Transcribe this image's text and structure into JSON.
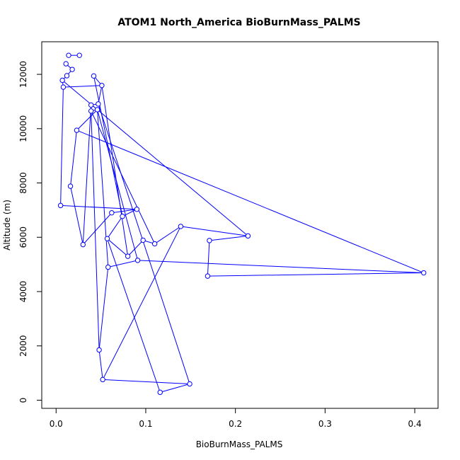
{
  "chart_data": {
    "type": "line",
    "title": "ATOM1 North_America BioBurnMass_PALMS",
    "xlabel": "BioBurnMass_PALMS",
    "ylabel": "Altitude (m)",
    "xlim": [
      -0.016,
      0.426
    ],
    "ylim": [
      -300,
      13200
    ],
    "x_ticks": [
      0.0,
      0.1,
      0.2,
      0.3,
      0.4
    ],
    "x_tick_labels": [
      "0.0",
      "0.1",
      "0.2",
      "0.3",
      "0.4"
    ],
    "y_ticks": [
      0,
      2000,
      4000,
      6000,
      8000,
      10000,
      12000
    ],
    "y_tick_labels": [
      "0",
      "2000",
      "4000",
      "6000",
      "8000",
      "10000",
      "12000"
    ],
    "grid": false,
    "legend": "none",
    "marker": "open-circle",
    "color": "#0000ff",
    "series": [
      {
        "points": [
          {
            "x": 0.026,
            "y": 12700
          },
          {
            "x": 0.014,
            "y": 12700
          },
          {
            "x": 0.011,
            "y": 12390
          },
          {
            "x": 0.018,
            "y": 12180
          },
          {
            "x": 0.012,
            "y": 11950
          },
          {
            "x": 0.007,
            "y": 11780
          },
          {
            "x": 0.008,
            "y": 11530
          },
          {
            "x": 0.005,
            "y": 7170
          },
          {
            "x": 0.042,
            "y": 11940
          },
          {
            "x": 0.051,
            "y": 11590
          },
          {
            "x": 0.047,
            "y": 10910
          },
          {
            "x": 0.039,
            "y": 10870
          },
          {
            "x": 0.039,
            "y": 10650
          },
          {
            "x": 0.046,
            "y": 10700
          },
          {
            "x": 0.023,
            "y": 9940
          },
          {
            "x": 0.016,
            "y": 7880
          },
          {
            "x": 0.03,
            "y": 5730
          },
          {
            "x": 0.062,
            "y": 6900
          },
          {
            "x": 0.09,
            "y": 7030
          },
          {
            "x": 0.074,
            "y": 6770
          },
          {
            "x": 0.057,
            "y": 5950
          },
          {
            "x": 0.08,
            "y": 5300
          },
          {
            "x": 0.097,
            "y": 5890
          },
          {
            "x": 0.11,
            "y": 5760
          },
          {
            "x": 0.139,
            "y": 6400
          },
          {
            "x": 0.214,
            "y": 6050
          },
          {
            "x": 0.171,
            "y": 5880
          },
          {
            "x": 0.169,
            "y": 4570
          },
          {
            "x": 0.41,
            "y": 4690
          },
          {
            "x": 0.091,
            "y": 5150
          },
          {
            "x": 0.058,
            "y": 4900
          },
          {
            "x": 0.048,
            "y": 1850
          },
          {
            "x": 0.052,
            "y": 760
          },
          {
            "x": 0.149,
            "y": 600
          },
          {
            "x": 0.116,
            "y": 290
          }
        ],
        "segments": [
          [
            0,
            1
          ],
          [
            2,
            3
          ],
          [
            3,
            4
          ],
          [
            4,
            5
          ],
          [
            5,
            6
          ],
          [
            6,
            7
          ],
          [
            6,
            9
          ],
          [
            8,
            9
          ],
          [
            9,
            10
          ],
          [
            10,
            11
          ],
          [
            11,
            12
          ],
          [
            12,
            13
          ],
          [
            13,
            14
          ],
          [
            14,
            15
          ],
          [
            15,
            16
          ],
          [
            16,
            17
          ],
          [
            17,
            18
          ],
          [
            18,
            19
          ],
          [
            19,
            20
          ],
          [
            20,
            21
          ],
          [
            21,
            22
          ],
          [
            22,
            23
          ],
          [
            23,
            24
          ],
          [
            24,
            25
          ],
          [
            25,
            26
          ],
          [
            26,
            27
          ],
          [
            27,
            28
          ],
          [
            28,
            29
          ],
          [
            29,
            30
          ],
          [
            30,
            31
          ],
          [
            31,
            32
          ],
          [
            32,
            33
          ],
          [
            33,
            34
          ],
          [
            12,
            31
          ],
          [
            8,
            19
          ],
          [
            10,
            33
          ],
          [
            13,
            29
          ],
          [
            5,
            25
          ],
          [
            14,
            28
          ],
          [
            16,
            11
          ],
          [
            18,
            7
          ],
          [
            9,
            21
          ],
          [
            32,
            24
          ],
          [
            20,
            34
          ],
          [
            12,
            23
          ],
          [
            13,
            30
          ]
        ]
      }
    ]
  }
}
